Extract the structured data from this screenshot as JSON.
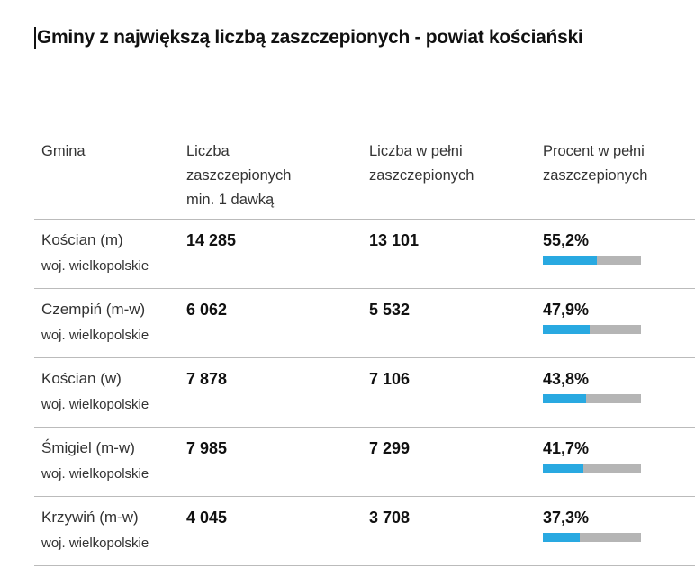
{
  "title": "Gminy z największą liczbą zaszczepionych - powiat kościański",
  "headers": {
    "gmina": "Gmina",
    "min1_l1": "Liczba",
    "min1_l2": "zaszczepionych",
    "min1_l3": "min. 1 dawką",
    "full_l1": "Liczba w pełni",
    "full_l2": "zaszczepionych",
    "pct_l1": "Procent w pełni",
    "pct_l2": "zaszczepionych"
  },
  "colors": {
    "bar_fill": "#29a9e1",
    "bar_bg": "#b5b5b5"
  },
  "rows": [
    {
      "name": "Kościan (m)",
      "region": "woj. wielkopolskie",
      "min1": "14 285",
      "full": "13 101",
      "pct": "55,2%",
      "pct_value": 55.2
    },
    {
      "name": "Czempiń (m-w)",
      "region": "woj. wielkopolskie",
      "min1": "6 062",
      "full": "5 532",
      "pct": "47,9%",
      "pct_value": 47.9
    },
    {
      "name": "Kościan (w)",
      "region": "woj. wielkopolskie",
      "min1": "7 878",
      "full": "7 106",
      "pct": "43,8%",
      "pct_value": 43.8
    },
    {
      "name": "Śmigiel (m-w)",
      "region": "woj. wielkopolskie",
      "min1": "7 985",
      "full": "7 299",
      "pct": "41,7%",
      "pct_value": 41.7
    },
    {
      "name": "Krzywiń (m-w)",
      "region": "woj. wielkopolskie",
      "min1": "4 045",
      "full": "3 708",
      "pct": "37,3%",
      "pct_value": 37.3
    }
  ]
}
